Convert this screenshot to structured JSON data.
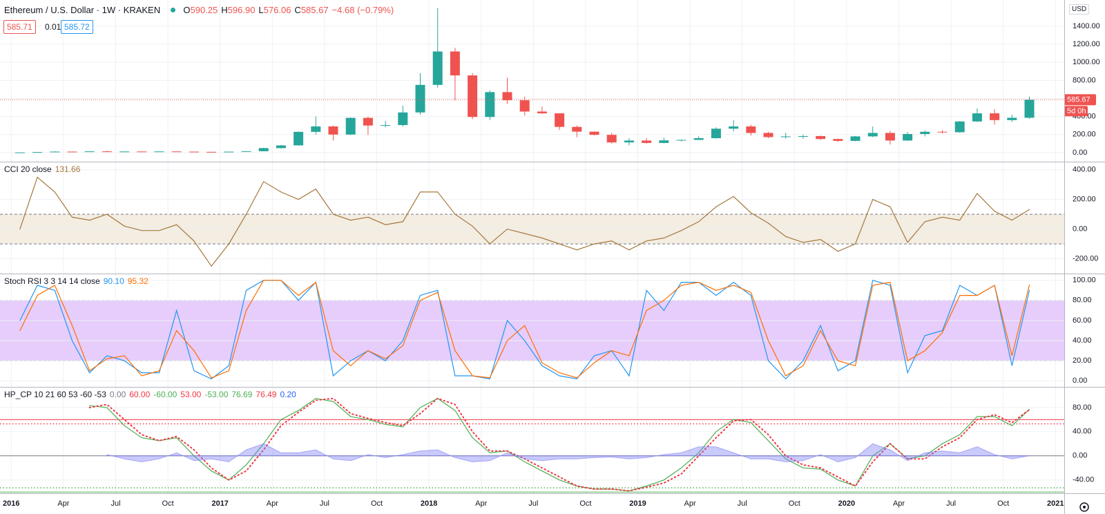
{
  "chart_data": [
    {
      "type": "candlestick",
      "title": "Ethereum / U.S. Dollar · 1W · KRAKEN",
      "ohlc": [
        {
          "key": "O",
          "value": "590.25"
        },
        {
          "key": "H",
          "value": "596.90"
        },
        {
          "key": "L",
          "value": "576.06"
        },
        {
          "key": "C",
          "value": "585.67"
        }
      ],
      "change": "−4.68 (−0.79%)",
      "bid": "585.71",
      "spread": "0.01",
      "ask": "585.72",
      "currency": "USD",
      "last_price_label": "585.67",
      "countdown": "5d 0h",
      "up_color": "#26a69a",
      "down_color": "#ef5350",
      "x": [
        "2016-01",
        "2016-02",
        "2016-03",
        "2016-04",
        "2016-05",
        "2016-06",
        "2016-07",
        "2016-08",
        "2016-09",
        "2016-10",
        "2016-11",
        "2016-12",
        "2017-01",
        "2017-02",
        "2017-03",
        "2017-04",
        "2017-05",
        "2017-06",
        "2017-07",
        "2017-08",
        "2017-09",
        "2017-10",
        "2017-11",
        "2017-12",
        "2018-01",
        "2018-02",
        "2018-03",
        "2018-04",
        "2018-05",
        "2018-06",
        "2018-07",
        "2018-08",
        "2018-09",
        "2018-10",
        "2018-11",
        "2018-12",
        "2019-01",
        "2019-02",
        "2019-03",
        "2019-04",
        "2019-05",
        "2019-06",
        "2019-07",
        "2019-08",
        "2019-09",
        "2019-10",
        "2019-11",
        "2019-12",
        "2020-01",
        "2020-02",
        "2020-03",
        "2020-04",
        "2020-05",
        "2020-06",
        "2020-07",
        "2020-08",
        "2020-09",
        "2020-10",
        "2020-11"
      ],
      "open": [
        0.95,
        2.2,
        6.4,
        11.4,
        8.8,
        14,
        12.5,
        12.6,
        11.6,
        13.2,
        11,
        8.6,
        8.2,
        10.7,
        15.6,
        50,
        80,
        230,
        290,
        200,
        385,
        300,
        305,
        445,
        750,
        1120,
        855,
        395,
        670,
        580,
        455,
        435,
        285,
        232,
        197,
        113,
        134,
        107,
        136,
        141,
        160,
        265,
        290,
        218,
        172,
        180,
        183,
        151,
        130,
        180,
        218,
        134,
        206,
        231,
        226,
        345,
        435,
        360,
        386
      ],
      "high": [
        2.5,
        7,
        15,
        12,
        14.5,
        21,
        14.5,
        12.8,
        14,
        13.5,
        11.5,
        9.2,
        11.5,
        15.8,
        55,
        85,
        235,
        400,
        300,
        390,
        400,
        350,
        520,
        880,
        1600,
        1160,
        880,
        690,
        830,
        620,
        510,
        435,
        300,
        235,
        220,
        160,
        160,
        165,
        145,
        180,
        280,
        360,
        310,
        230,
        220,
        198,
        190,
        155,
        185,
        288,
        240,
        227,
        246,
        250,
        350,
        490,
        480,
        420,
        620
      ],
      "low": [
        0.9,
        2.1,
        6,
        6.9,
        8.5,
        11,
        10.5,
        10,
        11.2,
        10.3,
        8.5,
        6,
        8,
        10.5,
        15,
        45,
        78,
        200,
        135,
        195,
        195,
        280,
        290,
        420,
        720,
        580,
        370,
        360,
        540,
        410,
        430,
        250,
        170,
        190,
        100,
        82,
        100,
        103,
        125,
        140,
        155,
        235,
        190,
        160,
        155,
        155,
        140,
        118,
        126,
        170,
        90,
        130,
        180,
        215,
        220,
        340,
        310,
        340,
        375
      ],
      "close": [
        2.2,
        6.4,
        11.4,
        8.8,
        14,
        12.5,
        12.6,
        11.6,
        13.2,
        11,
        8.6,
        8.2,
        10.7,
        15.6,
        50,
        80,
        230,
        290,
        200,
        385,
        300,
        305,
        445,
        750,
        1120,
        855,
        395,
        670,
        580,
        455,
        435,
        285,
        232,
        197,
        113,
        134,
        107,
        136,
        141,
        160,
        265,
        290,
        218,
        172,
        180,
        183,
        151,
        130,
        180,
        218,
        134,
        206,
        231,
        226,
        345,
        435,
        360,
        386,
        585.67
      ],
      "ylim": [
        -100,
        1690
      ],
      "yticks": [
        {
          "value": 0,
          "label": "0.00"
        },
        {
          "value": 200,
          "label": "200.00"
        },
        {
          "value": 400,
          "label": "400.00"
        },
        {
          "value": 600,
          "label": "600.00"
        },
        {
          "value": 800,
          "label": "800.00"
        },
        {
          "value": 1000,
          "label": "1000.00"
        },
        {
          "value": 1200,
          "label": "1200.00"
        },
        {
          "value": 1400,
          "label": "1400.00"
        }
      ],
      "xticks": [
        {
          "value": "2016-01",
          "label": "2016"
        },
        {
          "value": "2016-04",
          "label": "Apr"
        },
        {
          "value": "2016-07",
          "label": "Jul"
        },
        {
          "value": "2016-10",
          "label": "Oct"
        },
        {
          "value": "2017-01",
          "label": "2017"
        },
        {
          "value": "2017-04",
          "label": "Apr"
        },
        {
          "value": "2017-07",
          "label": "Jul"
        },
        {
          "value": "2017-10",
          "label": "Oct"
        },
        {
          "value": "2018-01",
          "label": "2018"
        },
        {
          "value": "2018-04",
          "label": "Apr"
        },
        {
          "value": "2018-07",
          "label": "Jul"
        },
        {
          "value": "2018-10",
          "label": "Oct"
        },
        {
          "value": "2019-01",
          "label": "2019"
        },
        {
          "value": "2019-04",
          "label": "Apr"
        },
        {
          "value": "2019-07",
          "label": "Jul"
        },
        {
          "value": "2019-10",
          "label": "Oct"
        },
        {
          "value": "2020-01",
          "label": "2020"
        },
        {
          "value": "2020-04",
          "label": "Apr"
        },
        {
          "value": "2020-07",
          "label": "Jul"
        },
        {
          "value": "2020-10",
          "label": "Oct"
        },
        {
          "value": "2021-01",
          "label": "2021"
        }
      ],
      "grid": true
    },
    {
      "type": "line",
      "title": "CCI 20 close",
      "x": [
        "2016-01",
        "2016-02",
        "2016-03",
        "2016-04",
        "2016-05",
        "2016-06",
        "2016-07",
        "2016-08",
        "2016-09",
        "2016-10",
        "2016-11",
        "2016-12",
        "2017-01",
        "2017-02",
        "2017-03",
        "2017-04",
        "2017-05",
        "2017-06",
        "2017-07",
        "2017-08",
        "2017-09",
        "2017-10",
        "2017-11",
        "2017-12",
        "2018-01",
        "2018-02",
        "2018-03",
        "2018-04",
        "2018-05",
        "2018-06",
        "2018-07",
        "2018-08",
        "2018-09",
        "2018-10",
        "2018-11",
        "2018-12",
        "2019-01",
        "2019-02",
        "2019-03",
        "2019-04",
        "2019-05",
        "2019-06",
        "2019-07",
        "2019-08",
        "2019-09",
        "2019-10",
        "2019-11",
        "2019-12",
        "2020-01",
        "2020-02",
        "2020-03",
        "2020-04",
        "2020-05",
        "2020-06",
        "2020-07",
        "2020-08",
        "2020-09",
        "2020-10",
        "2020-11"
      ],
      "series": [
        {
          "color": "#a5783c",
          "last_label": "131.66",
          "values": [
            0,
            350,
            250,
            80,
            60,
            100,
            20,
            -10,
            -10,
            30,
            -80,
            -250,
            -100,
            100,
            320,
            250,
            200,
            270,
            100,
            60,
            80,
            30,
            50,
            250,
            250,
            100,
            20,
            -100,
            0,
            -30,
            -60,
            -100,
            -140,
            -100,
            -80,
            -140,
            -80,
            -60,
            -10,
            50,
            150,
            220,
            110,
            40,
            -50,
            -90,
            -70,
            -150,
            -100,
            200,
            150,
            -90,
            50,
            80,
            60,
            240,
            120,
            60,
            131.66
          ]
        }
      ],
      "band": [
        -100,
        100
      ],
      "band_color": "#f3ede2",
      "ylim": [
        -300,
        450
      ],
      "yticks": [
        {
          "value": -200,
          "label": "-200.00"
        },
        {
          "value": 0,
          "label": "0.00"
        },
        {
          "value": 200,
          "label": "200.00"
        },
        {
          "value": 400,
          "label": "400.00"
        }
      ],
      "grid": true
    },
    {
      "type": "line",
      "title": "Stoch RSI 3 3 14 14 close",
      "x": [
        "2016-01",
        "2016-02",
        "2016-03",
        "2016-04",
        "2016-05",
        "2016-06",
        "2016-07",
        "2016-08",
        "2016-09",
        "2016-10",
        "2016-11",
        "2016-12",
        "2017-01",
        "2017-02",
        "2017-03",
        "2017-04",
        "2017-05",
        "2017-06",
        "2017-07",
        "2017-08",
        "2017-09",
        "2017-10",
        "2017-11",
        "2017-12",
        "2018-01",
        "2018-02",
        "2018-03",
        "2018-04",
        "2018-05",
        "2018-06",
        "2018-07",
        "2018-08",
        "2018-09",
        "2018-10",
        "2018-11",
        "2018-12",
        "2019-01",
        "2019-02",
        "2019-03",
        "2019-04",
        "2019-05",
        "2019-06",
        "2019-07",
        "2019-08",
        "2019-09",
        "2019-10",
        "2019-11",
        "2019-12",
        "2020-01",
        "2020-02",
        "2020-03",
        "2020-04",
        "2020-05",
        "2020-06",
        "2020-07",
        "2020-08",
        "2020-09",
        "2020-10",
        "2020-11"
      ],
      "series": [
        {
          "color": "#2196f3",
          "last_label": "90.10",
          "values": [
            60,
            95,
            90,
            40,
            8,
            25,
            20,
            8,
            8,
            70,
            10,
            2,
            15,
            90,
            100,
            100,
            80,
            98,
            5,
            20,
            30,
            20,
            40,
            85,
            90,
            5,
            5,
            2,
            60,
            40,
            15,
            5,
            2,
            25,
            30,
            5,
            90,
            70,
            98,
            98,
            85,
            98,
            85,
            20,
            2,
            20,
            55,
            10,
            20,
            100,
            95,
            8,
            45,
            50,
            95,
            85,
            95,
            15,
            90.1
          ]
        },
        {
          "color": "#ff6d00",
          "last_label": "95.32",
          "values": [
            50,
            85,
            95,
            55,
            10,
            22,
            25,
            5,
            10,
            50,
            30,
            3,
            10,
            70,
            100,
            100,
            85,
            98,
            30,
            15,
            30,
            22,
            35,
            80,
            88,
            30,
            5,
            3,
            40,
            55,
            18,
            8,
            3,
            18,
            30,
            25,
            70,
            80,
            95,
            98,
            90,
            95,
            88,
            40,
            5,
            15,
            50,
            20,
            15,
            95,
            98,
            20,
            30,
            48,
            85,
            85,
            95,
            25,
            95.32
          ]
        }
      ],
      "band": [
        20,
        80
      ],
      "band_color": "#e6cdfb",
      "ylim": [
        -6,
        106
      ],
      "yticks": [
        {
          "value": 0,
          "label": "0.00"
        },
        {
          "value": 20,
          "label": "20.00"
        },
        {
          "value": 40,
          "label": "40.00"
        },
        {
          "value": 60,
          "label": "60.00"
        },
        {
          "value": 80,
          "label": "80.00"
        },
        {
          "value": 100,
          "label": "100.00"
        }
      ],
      "grid": true
    },
    {
      "type": "line",
      "title": "HP_CP 10 21 60 53 -60 -53",
      "x": [
        "2016-01",
        "2016-02",
        "2016-03",
        "2016-04",
        "2016-05",
        "2016-06",
        "2016-07",
        "2016-08",
        "2016-09",
        "2016-10",
        "2016-11",
        "2016-12",
        "2017-01",
        "2017-02",
        "2017-03",
        "2017-04",
        "2017-05",
        "2017-06",
        "2017-07",
        "2017-08",
        "2017-09",
        "2017-10",
        "2017-11",
        "2017-12",
        "2018-01",
        "2018-02",
        "2018-03",
        "2018-04",
        "2018-05",
        "2018-06",
        "2018-07",
        "2018-08",
        "2018-09",
        "2018-10",
        "2018-11",
        "2018-12",
        "2019-01",
        "2019-02",
        "2019-03",
        "2019-04",
        "2019-05",
        "2019-06",
        "2019-07",
        "2019-08",
        "2019-09",
        "2019-10",
        "2019-11",
        "2019-12",
        "2020-01",
        "2020-02",
        "2020-03",
        "2020-04",
        "2020-05",
        "2020-06",
        "2020-07",
        "2020-08",
        "2020-09",
        "2020-10",
        "2020-11"
      ],
      "levels": [
        {
          "value": 0,
          "label": "0.00",
          "color": "#787b86",
          "style": "solid"
        },
        {
          "value": 60,
          "label": "60.00",
          "color": "#f23645",
          "style": "solid"
        },
        {
          "value": -60,
          "label": "-60.00",
          "color": "#4caf50",
          "style": "solid"
        },
        {
          "value": 53,
          "label": "53.00",
          "color": "#f23645",
          "style": "dotted"
        },
        {
          "value": -53,
          "label": "-53.00",
          "color": "#4caf50",
          "style": "dotted"
        }
      ],
      "series": [
        {
          "color": "#4caf50",
          "style": "solid",
          "last_label": "76.69",
          "values": [
            null,
            null,
            null,
            null,
            83,
            80,
            50,
            30,
            25,
            30,
            0,
            -25,
            -40,
            -15,
            20,
            60,
            75,
            95,
            90,
            65,
            60,
            52,
            48,
            80,
            95,
            75,
            30,
            5,
            8,
            -10,
            -25,
            -40,
            -50,
            -55,
            -55,
            -58,
            -50,
            -40,
            -20,
            5,
            40,
            60,
            55,
            25,
            -5,
            -20,
            -22,
            -40,
            -50,
            0,
            20,
            -5,
            0,
            20,
            35,
            65,
            65,
            50,
            76.69
          ]
        },
        {
          "color": "#f23645",
          "style": "dotted",
          "last_label": "76.49",
          "values": [
            null,
            null,
            null,
            null,
            80,
            85,
            60,
            35,
            25,
            32,
            10,
            -20,
            -40,
            -25,
            10,
            50,
            72,
            92,
            95,
            70,
            62,
            55,
            50,
            70,
            95,
            85,
            40,
            8,
            8,
            -5,
            -20,
            -35,
            -50,
            -55,
            -55,
            -58,
            -52,
            -45,
            -30,
            0,
            30,
            58,
            60,
            35,
            0,
            -15,
            -20,
            -35,
            -50,
            -10,
            20,
            -5,
            -5,
            15,
            30,
            60,
            68,
            55,
            76.49
          ]
        },
        {
          "color": "#7b7bf5",
          "style": "area",
          "last_label": "0.20",
          "values": [
            null,
            null,
            null,
            null,
            null,
            2,
            -5,
            -10,
            -5,
            5,
            -8,
            -5,
            -10,
            10,
            20,
            5,
            5,
            10,
            -5,
            -8,
            2,
            -3,
            2,
            8,
            10,
            -3,
            -10,
            -8,
            5,
            -5,
            -8,
            -5,
            -5,
            -3,
            -2,
            -5,
            -3,
            2,
            5,
            15,
            15,
            5,
            -5,
            -5,
            -10,
            -8,
            2,
            -10,
            -3,
            20,
            10,
            -8,
            5,
            8,
            5,
            15,
            2,
            -5,
            0.2
          ]
        }
      ],
      "ylim": [
        -62,
        113
      ],
      "yticks": [
        {
          "value": -40,
          "label": "-40.00"
        },
        {
          "value": 0,
          "label": "0.00"
        },
        {
          "value": 40,
          "label": "40.00"
        },
        {
          "value": 80,
          "label": "80.00"
        }
      ],
      "grid": true
    }
  ]
}
